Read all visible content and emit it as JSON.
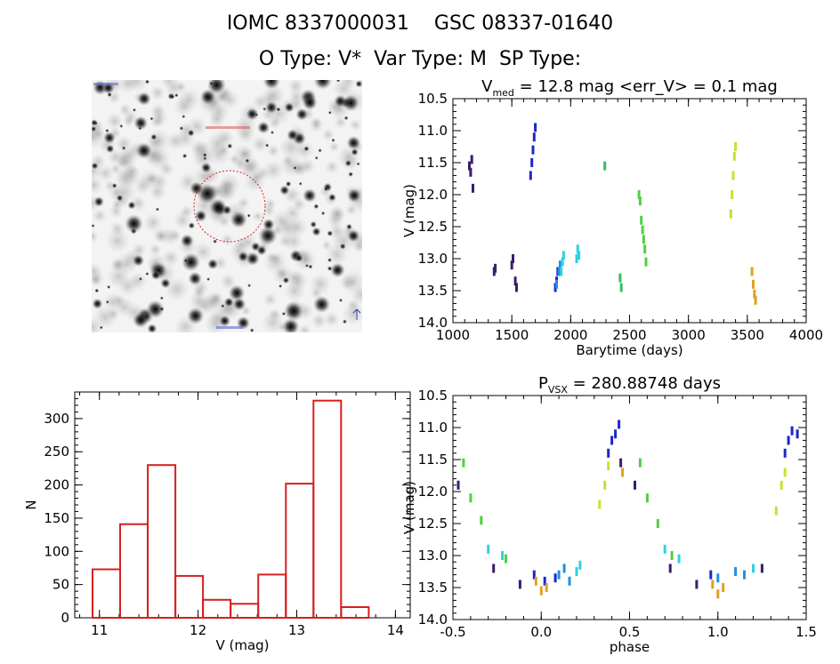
{
  "header": {
    "line1": "IOMC 8337000031    GSC 08337-01640",
    "line2": "O Type: V*  Var Type: M  SP Type:"
  },
  "thumbnail": {
    "alt": "DSS sky field around the target with a red identification circle"
  },
  "colors": {
    "axis": "#000000",
    "histogram": "#d42020",
    "circle": "#e02020"
  },
  "chart_data": [
    {
      "id": "lightcurve",
      "type": "scatter",
      "title_prefix": "V",
      "title_sub": "med",
      "title_rest": " = 12.8 mag <err_V> = 0.1 mag",
      "xlabel": "Barytime (days)",
      "ylabel": "V (mag)",
      "xlim": [
        1000,
        4000
      ],
      "ylim": [
        14.0,
        10.5
      ],
      "xticks": [
        "1000",
        "1500",
        "2000",
        "2500",
        "3000",
        "3500",
        "4000"
      ],
      "yticks": [
        "10.5",
        "11.0",
        "11.5",
        "12.0",
        "12.5",
        "13.0",
        "13.5",
        "14.0"
      ],
      "series": [
        {
          "color": "#3a1d6e",
          "points": [
            [
              1140,
              11.55
            ],
            [
              1150,
              11.65
            ],
            [
              1160,
              11.45
            ],
            [
              1170,
              11.9
            ],
            [
              1350,
              13.2
            ],
            [
              1360,
              13.15
            ],
            [
              1500,
              13.1
            ],
            [
              1510,
              13.0
            ],
            [
              1530,
              13.35
            ],
            [
              1540,
              13.45
            ]
          ]
        },
        {
          "color": "#1c28c8",
          "points": [
            [
              1660,
              11.7
            ],
            [
              1670,
              11.5
            ],
            [
              1680,
              11.3
            ],
            [
              1690,
              11.1
            ],
            [
              1700,
              10.95
            ],
            [
              1870,
              13.45
            ],
            [
              1880,
              13.35
            ],
            [
              1890,
              13.2
            ]
          ]
        },
        {
          "color": "#2090e0",
          "points": [
            [
              1880,
              13.4
            ],
            [
              1900,
              13.2
            ],
            [
              1910,
              13.1
            ]
          ]
        },
        {
          "color": "#30d0e0",
          "points": [
            [
              1920,
              13.2
            ],
            [
              1930,
              13.05
            ],
            [
              1940,
              12.95
            ],
            [
              2050,
              13.0
            ],
            [
              2060,
              12.85
            ],
            [
              2070,
              12.95
            ]
          ]
        },
        {
          "color": "#30c060",
          "points": [
            [
              2290,
              11.55
            ],
            [
              2420,
              13.3
            ],
            [
              2430,
              13.45
            ]
          ]
        },
        {
          "color": "#50d040",
          "points": [
            [
              2580,
              12.0
            ],
            [
              2590,
              12.1
            ],
            [
              2600,
              12.4
            ],
            [
              2610,
              12.55
            ],
            [
              2620,
              12.7
            ],
            [
              2630,
              12.85
            ],
            [
              2640,
              13.05
            ]
          ]
        },
        {
          "color": "#c8e030",
          "points": [
            [
              3360,
              12.3
            ],
            [
              3370,
              12.0
            ],
            [
              3380,
              11.7
            ],
            [
              3390,
              11.4
            ],
            [
              3400,
              11.25
            ]
          ]
        },
        {
          "color": "#e0a020",
          "points": [
            [
              3540,
              13.2
            ],
            [
              3550,
              13.4
            ],
            [
              3560,
              13.55
            ],
            [
              3570,
              13.65
            ]
          ]
        }
      ]
    },
    {
      "id": "histogram",
      "type": "bar",
      "xlabel": "V (mag)",
      "ylabel": "N",
      "xlim": [
        10.75,
        14.15
      ],
      "ylim": [
        0,
        340
      ],
      "xticks": [
        "11",
        "12",
        "13",
        "14"
      ],
      "yticks": [
        "0",
        "50",
        "100",
        "150",
        "200",
        "250",
        "300"
      ],
      "bin_edges": [
        10.93,
        11.21,
        11.49,
        11.77,
        12.05,
        12.33,
        12.61,
        12.89,
        13.17,
        13.45,
        13.73
      ],
      "values": [
        73,
        141,
        230,
        63,
        27,
        21,
        65,
        202,
        327,
        16
      ]
    },
    {
      "id": "phase",
      "type": "scatter",
      "title_prefix": "P",
      "title_sub": "VSX",
      "title_rest": " = 280.88748 days",
      "xlabel": "phase",
      "ylabel": "V (mag)",
      "xlim": [
        -0.5,
        1.5
      ],
      "ylim": [
        14.0,
        10.5
      ],
      "xticks": [
        "-0.5",
        "0.0",
        "0.5",
        "1.0",
        "1.5"
      ],
      "yticks": [
        "10.5",
        "11.0",
        "11.5",
        "12.0",
        "12.5",
        "13.0",
        "13.5",
        "14.0"
      ],
      "series": [
        {
          "color": "#3a1d6e",
          "points": [
            [
              -0.47,
              11.9
            ],
            [
              -0.27,
              13.2
            ],
            [
              -0.12,
              13.45
            ],
            [
              0.45,
              11.55
            ],
            [
              0.53,
              11.9
            ],
            [
              0.73,
              13.2
            ],
            [
              0.88,
              13.45
            ],
            [
              1.25,
              13.2
            ]
          ]
        },
        {
          "color": "#1c28c8",
          "points": [
            [
              0.38,
              11.4
            ],
            [
              0.4,
              11.2
            ],
            [
              0.42,
              11.1
            ],
            [
              0.44,
              10.95
            ],
            [
              0.96,
              13.3
            ],
            [
              1.38,
              11.4
            ],
            [
              1.4,
              11.2
            ],
            [
              1.42,
              11.05
            ],
            [
              1.45,
              11.1
            ],
            [
              -0.04,
              13.3
            ],
            [
              0.02,
              13.4
            ],
            [
              0.08,
              13.35
            ]
          ]
        },
        {
          "color": "#2090e0",
          "points": [
            [
              0.1,
              13.3
            ],
            [
              0.13,
              13.2
            ],
            [
              0.16,
              13.4
            ],
            [
              1.0,
              13.35
            ],
            [
              1.1,
              13.25
            ],
            [
              1.15,
              13.3
            ]
          ]
        },
        {
          "color": "#30d0e0",
          "points": [
            [
              -0.3,
              12.9
            ],
            [
              -0.22,
              13.0
            ],
            [
              0.2,
              13.25
            ],
            [
              0.22,
              13.15
            ],
            [
              0.7,
              12.9
            ],
            [
              0.78,
              13.05
            ],
            [
              1.2,
              13.2
            ]
          ]
        },
        {
          "color": "#50d040",
          "points": [
            [
              -0.44,
              11.55
            ],
            [
              -0.4,
              12.1
            ],
            [
              -0.34,
              12.45
            ],
            [
              -0.2,
              13.05
            ],
            [
              0.56,
              11.55
            ],
            [
              0.6,
              12.1
            ],
            [
              0.66,
              12.5
            ],
            [
              0.74,
              13.0
            ]
          ]
        },
        {
          "color": "#c8e030",
          "points": [
            [
              0.33,
              12.2
            ],
            [
              0.36,
              11.9
            ],
            [
              0.38,
              11.6
            ],
            [
              1.33,
              12.3
            ],
            [
              1.36,
              11.9
            ],
            [
              1.38,
              11.7
            ]
          ]
        },
        {
          "color": "#e0a020",
          "points": [
            [
              -0.03,
              13.4
            ],
            [
              0.0,
              13.55
            ],
            [
              0.03,
              13.5
            ],
            [
              0.46,
              11.7
            ],
            [
              0.97,
              13.45
            ],
            [
              1.0,
              13.6
            ],
            [
              1.03,
              13.5
            ]
          ]
        }
      ]
    }
  ]
}
